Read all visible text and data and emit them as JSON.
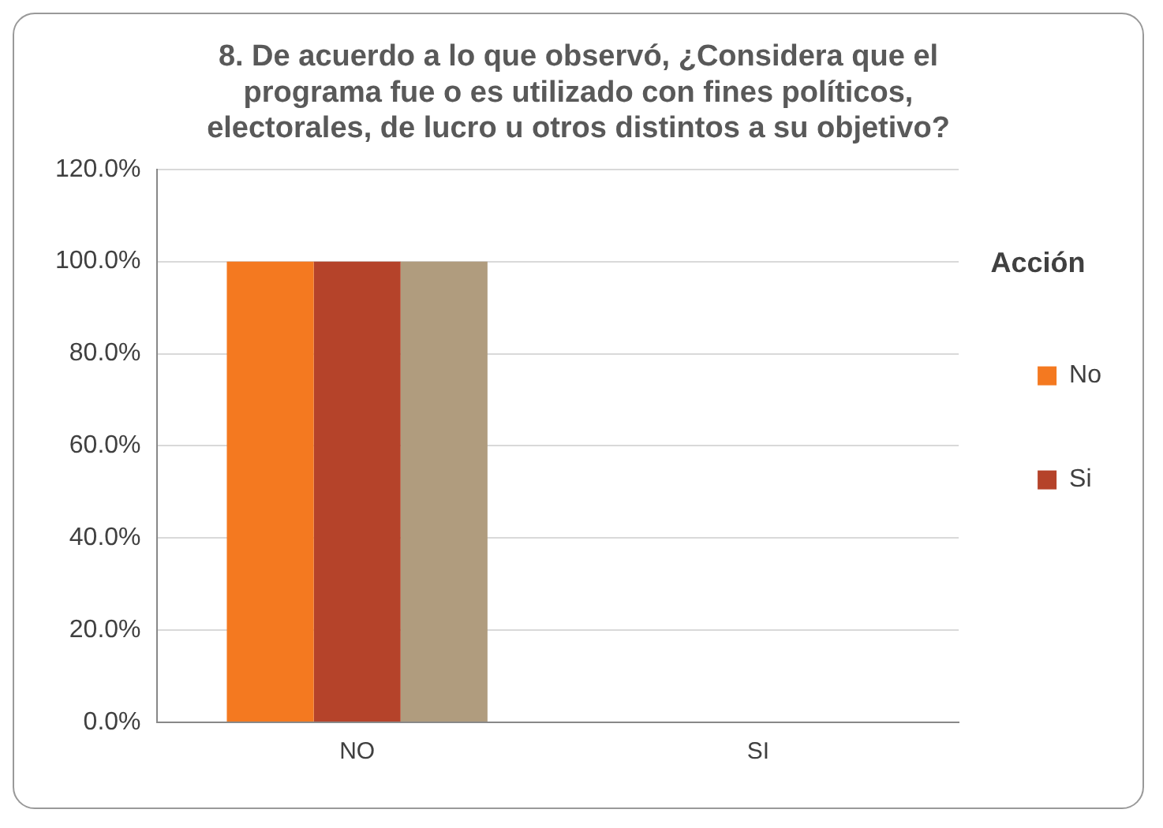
{
  "chart_data": {
    "type": "bar",
    "title": "8. De acuerdo a lo que observó, ¿Considera que el programa fue o es utilizado con fines políticos, electorales, de lucro u otros distintos a su objetivo?",
    "categories": [
      "NO",
      "SI"
    ],
    "series": [
      {
        "name": "No",
        "color": "#f47920",
        "values": [
          100,
          0
        ]
      },
      {
        "name": "Si",
        "color": "#b5432a",
        "values": [
          100,
          0
        ]
      },
      {
        "color": "#b09c7e",
        "values": [
          100,
          0
        ]
      }
    ],
    "ylim": [
      0,
      120
    ],
    "yticks": [
      {
        "value": 0,
        "label": "0.0%"
      },
      {
        "value": 20,
        "label": "20.0%"
      },
      {
        "value": 40,
        "label": "40.0%"
      },
      {
        "value": 60,
        "label": "60.0%"
      },
      {
        "value": 80,
        "label": "80.0%"
      },
      {
        "value": 100,
        "label": "100.0%"
      },
      {
        "value": 120,
        "label": "120.0%"
      }
    ],
    "grid": "y",
    "legend": "right",
    "legend_title": "Acción"
  }
}
